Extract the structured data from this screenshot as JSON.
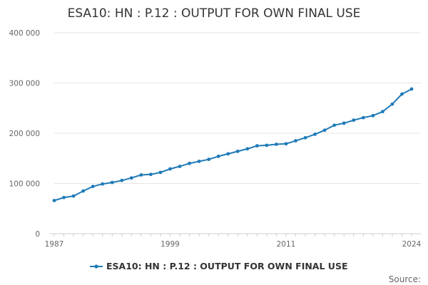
{
  "colors": {
    "series": "#1f7ab8",
    "grid": "#e6e6e6",
    "axis": "#cccccc",
    "text": "#333333"
  },
  "source_label": "Source:",
  "chart_data": {
    "type": "line",
    "title": "ESA10: HN : P.12 : OUTPUT FOR OWN FINAL USE",
    "xlabel": "",
    "ylabel": "",
    "ylim": [
      0,
      400000
    ],
    "y_ticks": [
      0,
      100000,
      200000,
      300000,
      400000
    ],
    "y_tick_labels": [
      "0",
      "100 000",
      "200 000",
      "300 000",
      "400 000"
    ],
    "x_tick_labels": [
      "1987",
      "1999",
      "2011",
      "2024"
    ],
    "x_ticks": [
      1987,
      1999,
      2011,
      2024
    ],
    "xlim": [
      1987,
      2024
    ],
    "grid": true,
    "legend_position": "bottom",
    "series": [
      {
        "name": "ESA10: HN : P.12 : OUTPUT FOR OWN FINAL USE",
        "x": [
          1987,
          1988,
          1989,
          1990,
          1991,
          1992,
          1993,
          1994,
          1995,
          1996,
          1997,
          1998,
          1999,
          2000,
          2001,
          2002,
          2003,
          2004,
          2005,
          2006,
          2007,
          2008,
          2009,
          2010,
          2011,
          2012,
          2013,
          2014,
          2015,
          2016,
          2017,
          2018,
          2019,
          2020,
          2021,
          2022,
          2023,
          2024
        ],
        "values": [
          66000,
          72000,
          75000,
          85000,
          94000,
          99000,
          102000,
          106000,
          111000,
          117000,
          118000,
          122000,
          129000,
          134000,
          140000,
          144000,
          148000,
          154000,
          159000,
          164000,
          169000,
          175000,
          176000,
          178000,
          179000,
          185000,
          191000,
          198000,
          206000,
          216000,
          220000,
          226000,
          231000,
          235000,
          243000,
          258000,
          278000,
          288000
        ]
      }
    ]
  }
}
